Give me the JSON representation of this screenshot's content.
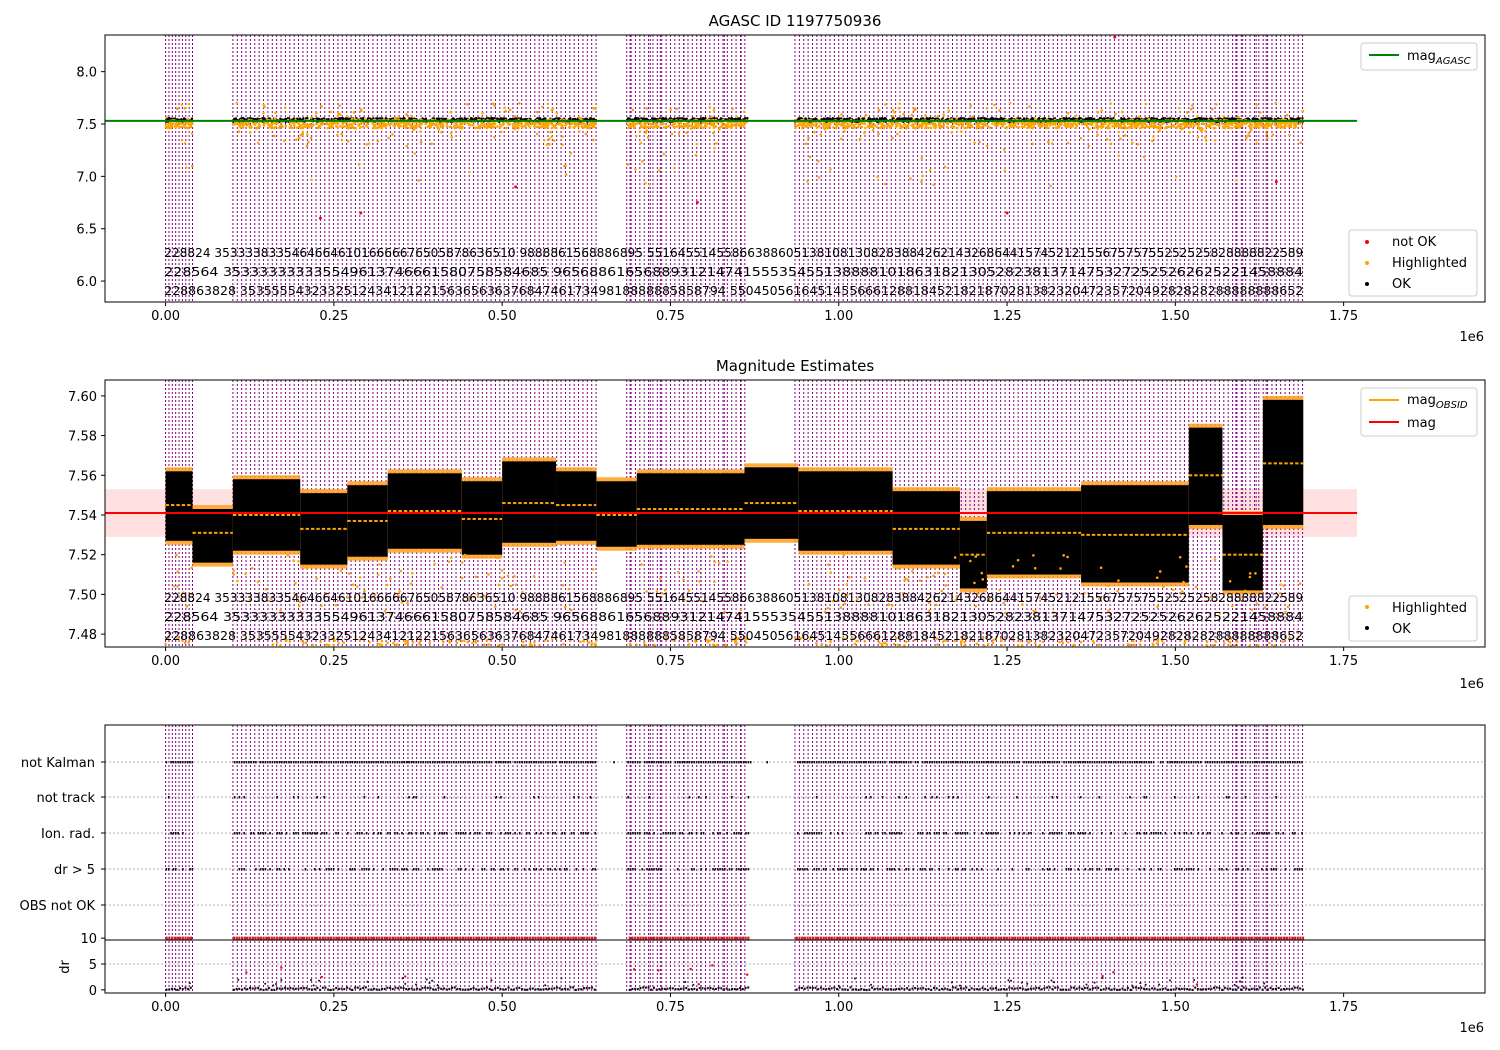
{
  "figure": {
    "title_top": "AGASC ID 1197750936",
    "title_mid": "Magnitude Estimates",
    "x_multiplier": "1e6"
  },
  "chart_data": [
    {
      "type": "scatter",
      "title": "AGASC ID 1197750936",
      "xlabel": "",
      "ylabel": "",
      "xlim": [
        -0.09,
        1.96
      ],
      "ylim": [
        5.8,
        8.35
      ],
      "x_ticks": [
        "0.00",
        "0.25",
        "0.50",
        "0.75",
        "1.00",
        "1.25",
        "1.50",
        "1.75"
      ],
      "y_ticks": [
        "6.0",
        "6.5",
        "7.0",
        "7.5",
        "8.0"
      ],
      "x_multiplier": "1e6",
      "legend": [
        {
          "label": "mag",
          "sub": "AGASC",
          "color": "#008000",
          "kind": "line",
          "position": "top-right"
        },
        {
          "label": "not OK",
          "color": "#ff0000",
          "kind": "point",
          "position": "bottom-right"
        },
        {
          "label": "Highlighted",
          "color": "#ffa500",
          "kind": "point",
          "position": "bottom-right"
        },
        {
          "label": "OK",
          "color": "#000000",
          "kind": "point",
          "position": "bottom-right"
        }
      ],
      "reference_lines": [
        {
          "name": "mag_AGASC",
          "y": 7.53,
          "color": "#008000"
        }
      ],
      "series": [
        {
          "name": "OK",
          "color": "#000000",
          "band": [
            7.51,
            7.57
          ]
        },
        {
          "name": "Highlighted",
          "color": "#ffa500",
          "spread": [
            7.3,
            7.7
          ]
        },
        {
          "name": "not OK",
          "color": "#ff0000",
          "values": [
            6.6,
            6.65,
            6.9,
            6.75,
            6.65,
            6.95,
            8.33
          ]
        }
      ]
    },
    {
      "type": "scatter",
      "title": "Magnitude Estimates",
      "xlabel": "",
      "ylabel": "",
      "xlim": [
        -0.09,
        1.96
      ],
      "ylim": [
        7.4735,
        7.608
      ],
      "x_ticks": [
        "0.00",
        "0.25",
        "0.50",
        "0.75",
        "1.00",
        "1.25",
        "1.50",
        "1.75"
      ],
      "y_ticks": [
        "7.48",
        "7.50",
        "7.52",
        "7.54",
        "7.56",
        "7.58",
        "7.60"
      ],
      "x_multiplier": "1e6",
      "legend": [
        {
          "label": "mag",
          "sub": "OBSID",
          "color": "#ffa500",
          "kind": "line",
          "position": "top-right"
        },
        {
          "label": "mag",
          "color": "#ff0000",
          "kind": "line",
          "position": "top-right"
        },
        {
          "label": "Highlighted",
          "color": "#ffa500",
          "kind": "point",
          "position": "bottom-right"
        },
        {
          "label": "OK",
          "color": "#000000",
          "kind": "point",
          "position": "bottom-right"
        }
      ],
      "reference_lines": [
        {
          "name": "mag",
          "y": 7.541,
          "band": [
            7.529,
            7.553
          ],
          "color": "#ff0000"
        }
      ],
      "segments": [
        {
          "x": [
            0.0,
            0.04
          ],
          "lo": 7.527,
          "hi": 7.562,
          "mag": 7.545
        },
        {
          "x": [
            0.04,
            0.1
          ],
          "lo": 7.516,
          "hi": 7.543,
          "mag": 7.531
        },
        {
          "x": [
            0.1,
            0.2
          ],
          "lo": 7.522,
          "hi": 7.558,
          "mag": 7.54
        },
        {
          "x": [
            0.2,
            0.27
          ],
          "lo": 7.515,
          "hi": 7.551,
          "mag": 7.533
        },
        {
          "x": [
            0.27,
            0.33
          ],
          "lo": 7.519,
          "hi": 7.555,
          "mag": 7.537
        },
        {
          "x": [
            0.33,
            0.44
          ],
          "lo": 7.523,
          "hi": 7.561,
          "mag": 7.542
        },
        {
          "x": [
            0.44,
            0.5
          ],
          "lo": 7.52,
          "hi": 7.557,
          "mag": 7.538
        },
        {
          "x": [
            0.5,
            0.58
          ],
          "lo": 7.526,
          "hi": 7.567,
          "mag": 7.546
        },
        {
          "x": [
            0.58,
            0.64
          ],
          "lo": 7.527,
          "hi": 7.562,
          "mag": 7.545
        },
        {
          "x": [
            0.64,
            0.7
          ],
          "lo": 7.524,
          "hi": 7.557,
          "mag": 7.54
        },
        {
          "x": [
            0.7,
            0.86
          ],
          "lo": 7.525,
          "hi": 7.561,
          "mag": 7.543
        },
        {
          "x": [
            0.86,
            0.94
          ],
          "lo": 7.528,
          "hi": 7.564,
          "mag": 7.546
        },
        {
          "x": [
            0.94,
            1.08
          ],
          "lo": 7.522,
          "hi": 7.562,
          "mag": 7.542
        },
        {
          "x": [
            1.08,
            1.18
          ],
          "lo": 7.515,
          "hi": 7.552,
          "mag": 7.533
        },
        {
          "x": [
            1.18,
            1.22
          ],
          "lo": 7.503,
          "hi": 7.537,
          "mag": 7.52
        },
        {
          "x": [
            1.22,
            1.36
          ],
          "lo": 7.51,
          "hi": 7.552,
          "mag": 7.531
        },
        {
          "x": [
            1.36,
            1.52
          ],
          "lo": 7.506,
          "hi": 7.555,
          "mag": 7.53
        },
        {
          "x": [
            1.52,
            1.57
          ],
          "lo": 7.535,
          "hi": 7.584,
          "mag": 7.56
        },
        {
          "x": [
            1.57,
            1.63
          ],
          "lo": 7.502,
          "hi": 7.54,
          "mag": 7.52
        },
        {
          "x": [
            1.63,
            1.69
          ],
          "lo": 7.535,
          "hi": 7.598,
          "mag": 7.566
        }
      ]
    },
    {
      "type": "scatter",
      "title": "",
      "xlabel": "",
      "ylabel": "",
      "x_multiplier": "",
      "categories": [
        "not Kalman",
        "not track",
        "Ion. rad.",
        "dr > 5",
        "OBS not OK"
      ],
      "description": "flag rows"
    },
    {
      "type": "scatter",
      "title": "",
      "xlabel": "",
      "ylabel": "dr",
      "xlim": [
        -0.09,
        1.96
      ],
      "ylim": [
        -0.6,
        10.6
      ],
      "y_ticks": [
        "0",
        "5",
        "10"
      ],
      "x_ticks": [
        "0.00",
        "0.25",
        "0.50",
        "0.75",
        "1.00",
        "1.25",
        "1.50",
        "1.75"
      ],
      "x_multiplier": "1e6",
      "reference_lines": [
        {
          "name": "dr limit",
          "y": 10,
          "color": "#000000"
        }
      ]
    }
  ],
  "observations": {
    "intervals": [
      [
        0.0,
        0.04
      ],
      [
        0.1,
        0.64
      ],
      [
        0.685,
        0.865
      ],
      [
        0.935,
        1.69
      ]
    ],
    "extra_lines": [
      0.69,
      0.72,
      0.735,
      0.77,
      0.795,
      0.83,
      0.855,
      1.59,
      1.6,
      1.62,
      1.635,
      1.65
    ],
    "label_rows": [
      "228824    353333833546466461016666676505878636510 9888861568886895    5516455145586638860513810813082838842621432686441574521215567575755252525828888822589",
      "228564    353333333335549613746661580758584685 96568861656889312147415553545513888810186318213052823813714753272525262625221458884",
      "228863828 3535555432332512434121221563656363768474617349818888885858794    550450561645145566612881845218218702813823204723572049282828288888888652"
    ]
  }
}
